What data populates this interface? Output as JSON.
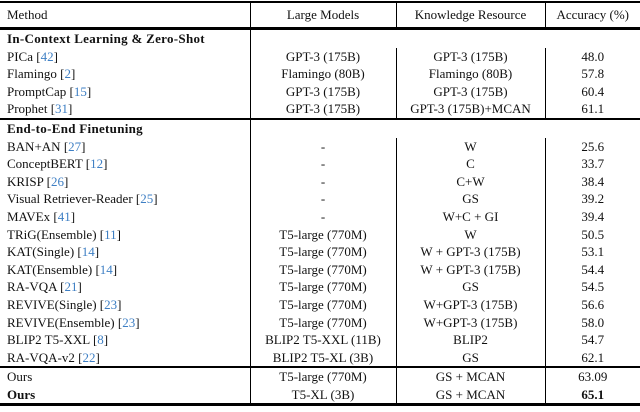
{
  "table": {
    "columns": [
      "Method",
      "Large Models",
      "Knowledge Resource",
      "Accuracy (%)"
    ],
    "citation_color": "#3e7fc4",
    "sections": [
      {
        "title": "In-Context Learning & Zero-Shot",
        "rows": [
          {
            "method": "PICa",
            "cite": "42",
            "large_models": "GPT-3 (175B)",
            "knowledge_resource": "GPT-3 (175B)",
            "accuracy": "48.0"
          },
          {
            "method": "Flamingo",
            "cite": "2",
            "large_models": "Flamingo (80B)",
            "knowledge_resource": "Flamingo (80B)",
            "accuracy": "57.8"
          },
          {
            "method": "PromptCap",
            "cite": "15",
            "large_models": "GPT-3 (175B)",
            "knowledge_resource": "GPT-3 (175B)",
            "accuracy": "60.4"
          },
          {
            "method": "Prophet",
            "cite": "31",
            "large_models": "GPT-3 (175B)",
            "knowledge_resource": "GPT-3 (175B)+MCAN",
            "accuracy": "61.1"
          }
        ]
      },
      {
        "title": "End-to-End Finetuning",
        "rows": [
          {
            "method": "BAN+AN",
            "cite": "27",
            "large_models": "-",
            "knowledge_resource": "W",
            "accuracy": "25.6"
          },
          {
            "method": "ConceptBERT",
            "cite": "12",
            "large_models": "-",
            "knowledge_resource": "C",
            "accuracy": "33.7"
          },
          {
            "method": "KRISP",
            "cite": "26",
            "large_models": "-",
            "knowledge_resource": "C+W",
            "accuracy": "38.4"
          },
          {
            "method": "Visual Retriever-Reader",
            "cite": "25",
            "large_models": "-",
            "knowledge_resource": "GS",
            "accuracy": "39.2"
          },
          {
            "method": "MAVEx",
            "cite": "41",
            "large_models": "-",
            "knowledge_resource": "W+C + GI",
            "accuracy": "39.4"
          },
          {
            "method": "TRiG(Ensemble)",
            "cite": "11",
            "large_models": "T5-large (770M)",
            "knowledge_resource": "W",
            "accuracy": "50.5"
          },
          {
            "method": "KAT(Single)",
            "cite": "14",
            "large_models": "T5-large (770M)",
            "knowledge_resource": "W + GPT-3 (175B)",
            "accuracy": "53.1"
          },
          {
            "method": "KAT(Ensemble)",
            "cite": "14",
            "large_models": "T5-large (770M)",
            "knowledge_resource": "W + GPT-3 (175B)",
            "accuracy": "54.4"
          },
          {
            "method": "RA-VQA",
            "cite": "21",
            "large_models": "T5-large (770M)",
            "knowledge_resource": "GS",
            "accuracy": "54.5"
          },
          {
            "method": "REVIVE(Single)",
            "cite": "23",
            "large_models": "T5-large (770M)",
            "knowledge_resource": "W+GPT-3 (175B)",
            "accuracy": "56.6"
          },
          {
            "method": "REVIVE(Ensemble)",
            "cite": "23",
            "large_models": "T5-large (770M)",
            "knowledge_resource": "W+GPT-3 (175B)",
            "accuracy": "58.0"
          },
          {
            "method": "BLIP2 T5-XXL",
            "cite": "8",
            "large_models": "BLIP2 T5-XXL (11B)",
            "knowledge_resource": "BLIP2",
            "accuracy": "54.7"
          },
          {
            "method": "RA-VQA-v2",
            "cite": "22",
            "large_models": "BLIP2 T5-XL (3B)",
            "knowledge_resource": "GS",
            "accuracy": "62.1"
          }
        ]
      },
      {
        "title": "",
        "rows": [
          {
            "method": "Ours",
            "cite": "",
            "large_models": "T5-large (770M)",
            "knowledge_resource": "GS + MCAN",
            "accuracy": "63.09"
          },
          {
            "method": "Ours",
            "cite": "",
            "large_models": "T5-XL (3B)",
            "knowledge_resource": "GS + MCAN",
            "accuracy": "65.1",
            "bold_method": true,
            "bold_accuracy": true
          }
        ]
      }
    ]
  }
}
